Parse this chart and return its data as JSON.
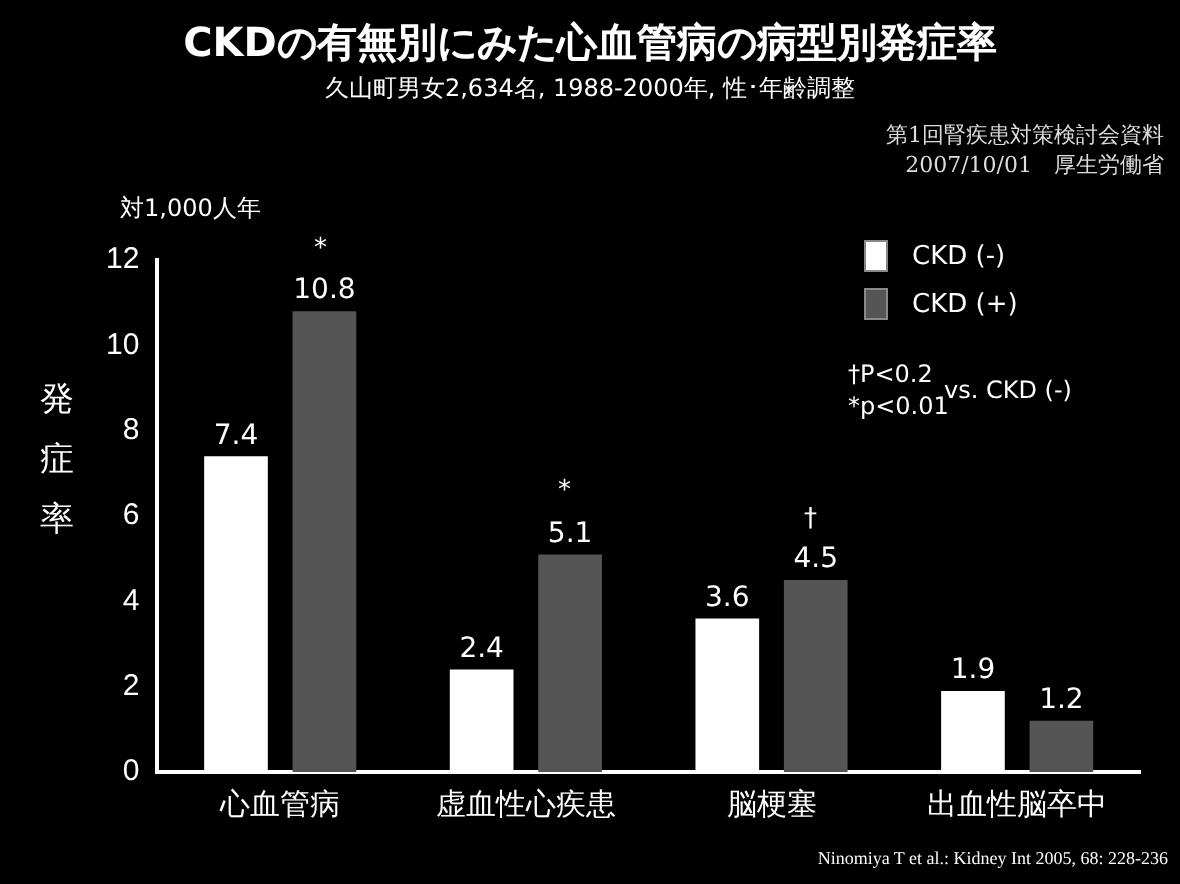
{
  "chart_data": {
    "type": "bar",
    "title": "CKDの有無別にみた心血管病の病型別発症率",
    "subtitle": "久山町男女2,634名, 1988-2000年, 性･年齢調整",
    "ylabel": "発症率",
    "categories": [
      "心血管病",
      "虚血性心疾患",
      "脳梗塞",
      "出血性脳卒中"
    ],
    "series": [
      {
        "name": "CKD (-)",
        "color": "#ffffff",
        "values": [
          7.4,
          2.4,
          3.6,
          1.9
        ]
      },
      {
        "name": "CKD (+)",
        "color": "#555555",
        "values": [
          10.8,
          5.1,
          4.5,
          1.2
        ]
      }
    ],
    "ylim": [
      0,
      12
    ],
    "yticks": [
      0,
      2,
      4,
      6,
      8,
      10,
      12
    ],
    "grid": false,
    "legend": "top right",
    "data_labels": true,
    "annotations": [
      "対1,000人年",
      "第1回腎疾患対策検討会資料",
      "2007/10/01　厚生労働省",
      "†P<0.2",
      "*p<0.01",
      "vs. CKD (-)",
      "Ninomiya T et al.: Kidney Int 2005, 68: 228-236",
      "*",
      "*",
      "†"
    ]
  }
}
